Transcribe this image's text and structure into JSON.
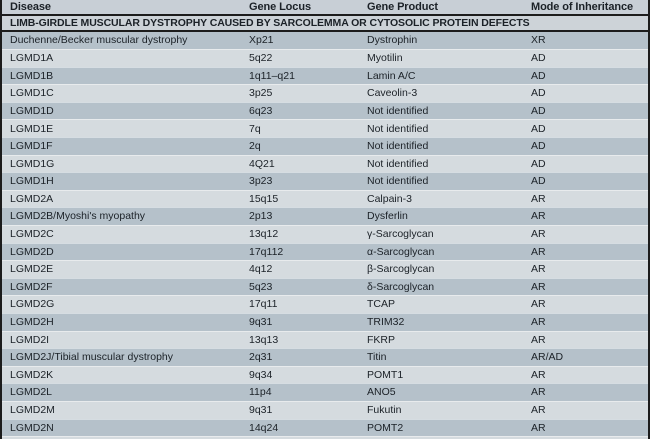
{
  "table": {
    "columns": [
      {
        "label": "Disease"
      },
      {
        "label": "Gene Locus"
      },
      {
        "label": "Gene Product"
      },
      {
        "label": "Mode of Inheritance"
      }
    ],
    "section_header": "LIMB-GIRDLE MUSCULAR DYSTROPHY CAUSED BY SARCOLEMMA OR CYTOSOLIC PROTEIN DEFECTS",
    "rows": [
      [
        "Duchenne/Becker muscular dystrophy",
        "Xp21",
        "Dystrophin",
        "XR"
      ],
      [
        "LGMD1A",
        "5q22",
        "Myotilin",
        "AD"
      ],
      [
        "LGMD1B",
        "1q11–q21",
        "Lamin A/C",
        "AD"
      ],
      [
        "LGMD1C",
        "3p25",
        "Caveolin-3",
        "AD"
      ],
      [
        "LGMD1D",
        "6q23",
        "Not identified",
        "AD"
      ],
      [
        "LGMD1E",
        "7q",
        "Not identified",
        "AD"
      ],
      [
        "LGMD1F",
        "2q",
        "Not identified",
        "AD"
      ],
      [
        "LGMD1G",
        "4Q21",
        "Not identified",
        "AD"
      ],
      [
        "LGMD1H",
        "3p23",
        "Not identified",
        "AD"
      ],
      [
        "LGMD2A",
        "15q15",
        "Calpain-3",
        "AR"
      ],
      [
        "LGMD2B/Myoshi's myopathy",
        "2p13",
        "Dysferlin",
        "AR"
      ],
      [
        "LGMD2C",
        "13q12",
        "γ-Sarcoglycan",
        "AR"
      ],
      [
        "LGMD2D",
        "17q112",
        "α-Sarcoglycan",
        "AR"
      ],
      [
        "LGMD2E",
        "4q12",
        "β-Sarcoglycan",
        "AR"
      ],
      [
        "LGMD2F",
        "5q23",
        "δ-Sarcoglycan",
        "AR"
      ],
      [
        "LGMD2G",
        "17q11",
        "TCAP",
        "AR"
      ],
      [
        "LGMD2H",
        "9q31",
        "TRIM32",
        "AR"
      ],
      [
        "LGMD2I",
        "13q13",
        "FKRP",
        "AR"
      ],
      [
        "LGMD2J/Tibial muscular dystrophy",
        "2q31",
        "Titin",
        "AR/AD"
      ],
      [
        "LGMD2K",
        "9q34",
        "POMT1",
        "AR"
      ],
      [
        "LGMD2L",
        "11p4",
        "ANO5",
        "AR"
      ],
      [
        "LGMD2M",
        "9q31",
        "Fukutin",
        "AR"
      ],
      [
        "LGMD2N",
        "14q24",
        "POMT2",
        "AR"
      ]
    ],
    "colors": {
      "header_bg": "#c8cfd6",
      "section_bg": "#cdd3d8",
      "row_dark_bg": "#b5c1ca",
      "row_light_bg": "#d5dbdf",
      "rule": "#1c1c1c",
      "text": "#1b2127"
    }
  }
}
